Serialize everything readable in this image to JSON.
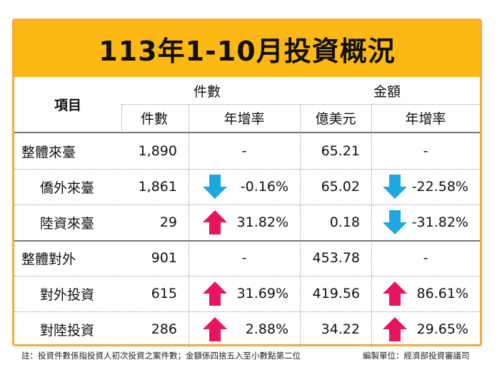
{
  "title": "113年1-10月投資概況",
  "header": {
    "item": "項目",
    "count_group": "件數",
    "amount_group": "金額",
    "count_col": "件數",
    "count_growth": "年增率",
    "amount_col": "億美元",
    "amount_growth": "年增率"
  },
  "rows": [
    {
      "label": "整體來臺",
      "count": "1,890",
      "count_growth": "-",
      "amount": "65.21",
      "amount_growth": "-",
      "count_trend": "none",
      "amount_trend": "none"
    },
    {
      "label": "僑外來臺",
      "count": "1,861",
      "count_growth": "-0.16%",
      "amount": "65.02",
      "amount_growth": "-22.58%",
      "count_trend": "down",
      "amount_trend": "down"
    },
    {
      "label": "陸資來臺",
      "count": "29",
      "count_growth": "31.82%",
      "amount": "0.18",
      "amount_growth": "-31.82%",
      "count_trend": "up",
      "amount_trend": "down"
    },
    {
      "label": "整體對外",
      "count": "901",
      "count_growth": "-",
      "amount": "453.78",
      "amount_growth": "-",
      "count_trend": "none",
      "amount_trend": "none"
    },
    {
      "label": "對外投資",
      "count": "615",
      "count_growth": "31.69%",
      "amount": "419.56",
      "amount_growth": "86.61%",
      "count_trend": "up",
      "amount_trend": "up"
    },
    {
      "label": "對陸投資",
      "count": "286",
      "count_growth": "2.88%",
      "amount": "34.22",
      "amount_growth": "29.65%",
      "count_trend": "up",
      "amount_trend": "up"
    }
  ],
  "footer": {
    "note": "註：投資件數係指投資人初次投資之案件數；金額係四捨五入至小數點第二位",
    "source": "編製單位：經濟部投資審議司"
  },
  "colors": {
    "title_bg": "#fdb813",
    "border": "#f7a93b",
    "arrow_up": "#e8145f",
    "arrow_down": "#1ea7e1"
  }
}
